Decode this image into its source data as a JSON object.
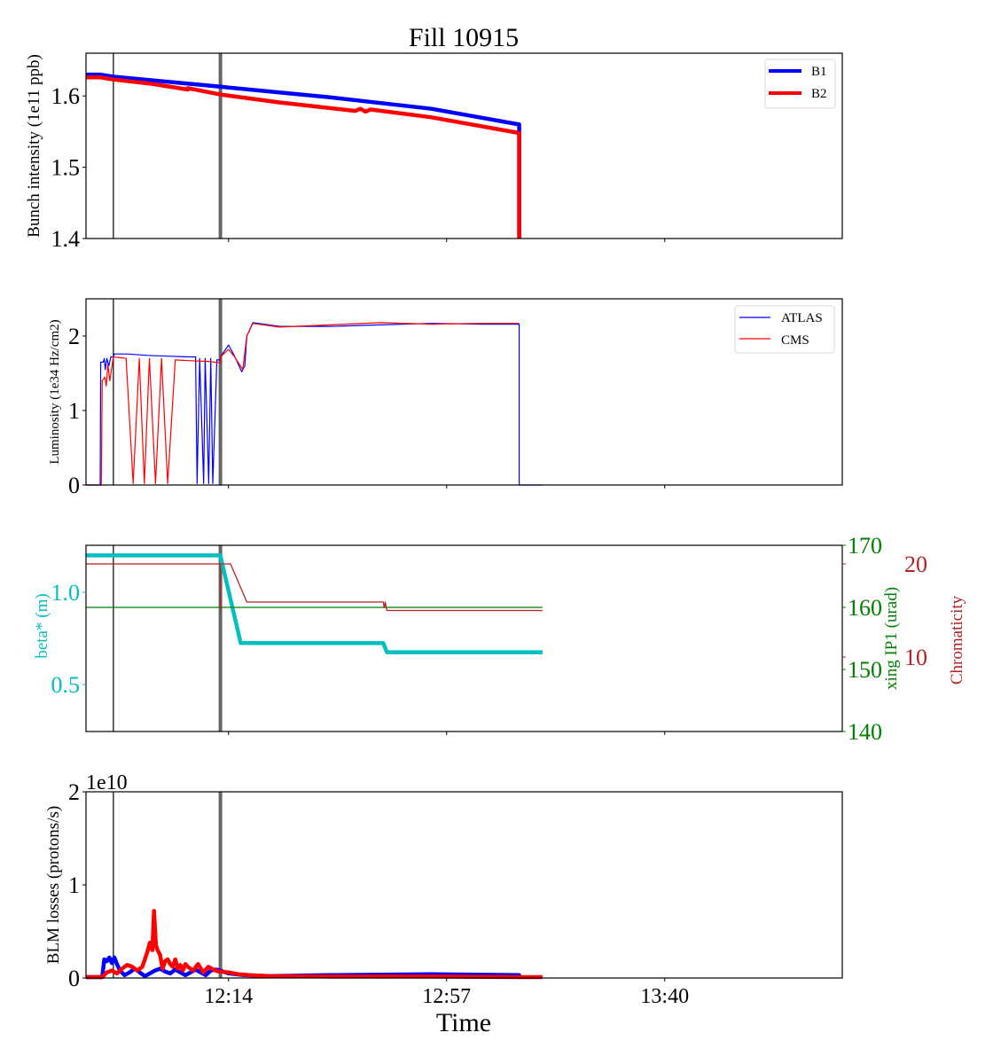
{
  "chart_data": [
    {
      "type": "line",
      "title": "Fill 10915",
      "xlabel": "",
      "ylabel": "Bunch intensity (1e11 ppb)",
      "x_unit": "minutes relative to 12:14",
      "xlim": [
        -28.1,
        121
      ],
      "ylim": [
        1.4,
        1.66
      ],
      "yticks": [
        "1.4",
        "1.5",
        "1.6"
      ],
      "ytick_values": [
        1.4,
        1.5,
        1.6
      ],
      "legend": "top-right",
      "series": [
        {
          "name": "B1",
          "color": "#0000ff",
          "x": [
            -28.1,
            -25.3,
            -22.7,
            -1.6,
            20,
            40,
            57.3,
            57.3
          ],
          "y": [
            1.63,
            1.63,
            1.627,
            1.613,
            1.598,
            1.582,
            1.56,
            1.4
          ]
        },
        {
          "name": "B2",
          "color": "#ff0000",
          "x": [
            -28.1,
            -25.3,
            -22.7,
            -15,
            -8,
            -8,
            -1.6,
            10,
            25,
            26,
            27,
            28,
            40,
            57.3,
            57.3
          ],
          "y": [
            1.626,
            1.626,
            1.623,
            1.617,
            1.609,
            1.611,
            1.602,
            1.591,
            1.579,
            1.582,
            1.578,
            1.581,
            1.57,
            1.548,
            1.4
          ]
        }
      ],
      "vlines": [
        {
          "x": -22.7,
          "color": "#000000"
        },
        {
          "x": -1.6,
          "color": "#666666"
        }
      ]
    },
    {
      "type": "line",
      "xlabel": "",
      "ylabel": "Luminosity (1e34 Hz/cm2)",
      "x_unit": "minutes relative to 12:14",
      "xlim": [
        -28.1,
        121
      ],
      "ylim": [
        0,
        2.5
      ],
      "yticks": [
        "0",
        "1",
        "2"
      ],
      "ytick_values": [
        0,
        1,
        2
      ],
      "legend": "top-right",
      "series": [
        {
          "name": "ATLAS",
          "color": "#0000ff",
          "x": [
            -28.1,
            -25.3,
            -25.2,
            -24.7,
            -24.5,
            -24.3,
            -24.0,
            -23.6,
            -23.2,
            -22.7,
            -22.5,
            -20,
            -16,
            -12,
            -8,
            -6.5,
            -6.2,
            -5.7,
            -4.9,
            -4.6,
            -3.9,
            -3.5,
            -3.1,
            -2.3,
            -1.9,
            -1.6,
            -1.6,
            0,
            1.2,
            2.6,
            3.2,
            3.6,
            4.8,
            10,
            20,
            30,
            40,
            50,
            57.3,
            57.3,
            61.9
          ],
          "y": [
            0,
            0,
            1.65,
            1.65,
            1.7,
            1.55,
            1.7,
            1.6,
            1.72,
            1.72,
            1.76,
            1.76,
            1.74,
            1.73,
            1.72,
            1.72,
            0.02,
            1.7,
            0.02,
            1.7,
            0.02,
            1.7,
            0.02,
            1.68,
            1.68,
            1.68,
            1.72,
            1.88,
            1.73,
            1.52,
            1.6,
            2.0,
            2.18,
            2.13,
            2.13,
            2.15,
            2.17,
            2.16,
            2.16,
            0,
            0
          ]
        },
        {
          "name": "CMS",
          "color": "#ff0000",
          "x": [
            -28.1,
            -25.1,
            -24.9,
            -24.4,
            -24.1,
            -23.8,
            -23.4,
            -22.7,
            -20.2,
            -18.8,
            -17.6,
            -16.6,
            -15.6,
            -14.4,
            -13.2,
            -12.0,
            -10.5,
            -8,
            -4,
            -1.6,
            -1.6,
            0,
            1.2,
            2.8,
            3.6,
            4.8,
            10,
            20,
            30,
            40,
            50,
            57.3
          ],
          "y": [
            0,
            0,
            1.4,
            1.45,
            1.33,
            1.62,
            1.4,
            1.72,
            1.7,
            0.02,
            1.7,
            0.02,
            1.7,
            0.02,
            1.7,
            0.02,
            1.68,
            1.67,
            1.66,
            1.64,
            1.72,
            1.82,
            1.72,
            1.55,
            2.0,
            2.17,
            2.12,
            2.15,
            2.18,
            2.16,
            2.17,
            2.17
          ]
        }
      ],
      "vlines": [
        {
          "x": -22.7,
          "color": "#000000"
        },
        {
          "x": -1.6,
          "color": "#666666"
        }
      ]
    },
    {
      "type": "line",
      "xlabel": "",
      "ylabel": "beta* (m)",
      "ylabel_right": [
        "xing IP1 (urad)",
        "Chromaticity"
      ],
      "x_unit": "minutes relative to 12:14",
      "xlim": [
        -28.1,
        121
      ],
      "ylim": [
        0.245,
        1.255
      ],
      "yticks": [
        "0.5",
        "1.0"
      ],
      "ytick_values": [
        0.5,
        1.0
      ],
      "ylim_right1": [
        140,
        170
      ],
      "yticks_right1": [
        "140",
        "150",
        "160",
        "170"
      ],
      "ytick_values_right1": [
        140,
        150,
        160,
        170
      ],
      "ylim_right2": [
        2,
        22
      ],
      "yticks_right2": [
        "10",
        "20"
      ],
      "ytick_values_right2": [
        10,
        20
      ],
      "series": [
        {
          "name": "beta*",
          "axis": "left",
          "color": "#00bfbf",
          "x": [
            -28.1,
            -1.6,
            -1.2,
            2.4,
            30.5,
            31.2,
            61.9
          ],
          "y": [
            1.2,
            1.2,
            1.15,
            0.725,
            0.725,
            0.675,
            0.675
          ]
        },
        {
          "name": "xing IP1",
          "axis": "right1",
          "color": "#008000",
          "x": [
            -28.1,
            61.9
          ],
          "y": [
            160,
            160
          ]
        },
        {
          "name": "Chromaticity",
          "axis": "right2",
          "color": "#b22222",
          "x": [
            -28.1,
            -1.6,
            -1.6,
            -1.6,
            0.4,
            3.6,
            30.5,
            30.7,
            30.9,
            31.2,
            61.9
          ],
          "y": [
            20,
            20,
            15.0,
            20,
            20,
            15.9,
            15.9,
            15.3,
            15.9,
            15.0,
            15.0
          ]
        }
      ],
      "vlines": [
        {
          "x": -22.7,
          "color": "#000000"
        },
        {
          "x": -1.6,
          "color": "#666666"
        }
      ]
    },
    {
      "type": "line",
      "xlabel": "Time",
      "ylabel": "BLM losses (protons/s)",
      "offset_text": "1e10",
      "x_unit": "minutes relative to 12:14",
      "xlim": [
        -28.1,
        121
      ],
      "ylim": [
        0,
        2
      ],
      "yticks": [
        "0",
        "1",
        "2"
      ],
      "ytick_values": [
        0,
        1,
        2
      ],
      "xticks": [
        "12:14",
        "12:57",
        "13:40"
      ],
      "xtick_values": [
        0,
        43,
        86
      ],
      "series": [
        {
          "name": "B1",
          "color": "#0000ff",
          "x": [
            -28.1,
            -24.9,
            -24.5,
            -24.0,
            -23.5,
            -23.0,
            -22.5,
            -22.0,
            -21.4,
            -20.5,
            -19.5,
            -18.5,
            -17.5,
            -16.5,
            -15.5,
            -14.5,
            -13.5,
            -12.5,
            -11.5,
            -10.5,
            -9.5,
            -8.5,
            -7.5,
            -6.5,
            -5.5,
            -4.5,
            -3.5,
            -2.5,
            -1.6,
            0,
            3,
            8,
            20,
            40,
            57.3,
            57.3
          ],
          "y": [
            0.01,
            0.01,
            0.2,
            0.18,
            0.22,
            0.16,
            0.22,
            0.15,
            0.08,
            0.03,
            0.06,
            0.1,
            0.06,
            0.02,
            0.05,
            0.08,
            0.1,
            0.07,
            0.05,
            0.09,
            0.06,
            0.03,
            0.06,
            0.09,
            0.06,
            0.03,
            0.08,
            0.09,
            0.08,
            0.05,
            0.03,
            0.02,
            0.03,
            0.04,
            0.03,
            0
          ]
        },
        {
          "name": "B2",
          "color": "#ff0000",
          "x": [
            -28.1,
            -24.9,
            -24.0,
            -23.0,
            -22.0,
            -21.0,
            -20.0,
            -19.0,
            -18.0,
            -17.0,
            -16.5,
            -16.0,
            -15.5,
            -15.0,
            -14.7,
            -14.3,
            -14.0,
            -13.5,
            -13.0,
            -12.5,
            -12.0,
            -11.5,
            -11.0,
            -10.5,
            -10.0,
            -9.5,
            -9.0,
            -8.5,
            -8.0,
            -7.0,
            -6.0,
            -5.0,
            -4.0,
            -3.0,
            -2.0,
            -1.6,
            0,
            2,
            4,
            8,
            20,
            40,
            57.3,
            61.9
          ],
          "y": [
            0.01,
            0.01,
            0.06,
            0.08,
            0.05,
            0.1,
            0.14,
            0.12,
            0.08,
            0.12,
            0.2,
            0.28,
            0.38,
            0.3,
            0.72,
            0.35,
            0.3,
            0.25,
            0.1,
            0.18,
            0.2,
            0.15,
            0.12,
            0.2,
            0.1,
            0.14,
            0.08,
            0.15,
            0.12,
            0.08,
            0.15,
            0.06,
            0.12,
            0.09,
            0.07,
            0.07,
            0.06,
            0.04,
            0.03,
            0.02,
            0.015,
            0.015,
            0.01,
            0.01
          ]
        }
      ],
      "vlines": [
        {
          "x": -22.7,
          "color": "#000000"
        },
        {
          "x": -1.6,
          "color": "#666666"
        }
      ]
    }
  ]
}
